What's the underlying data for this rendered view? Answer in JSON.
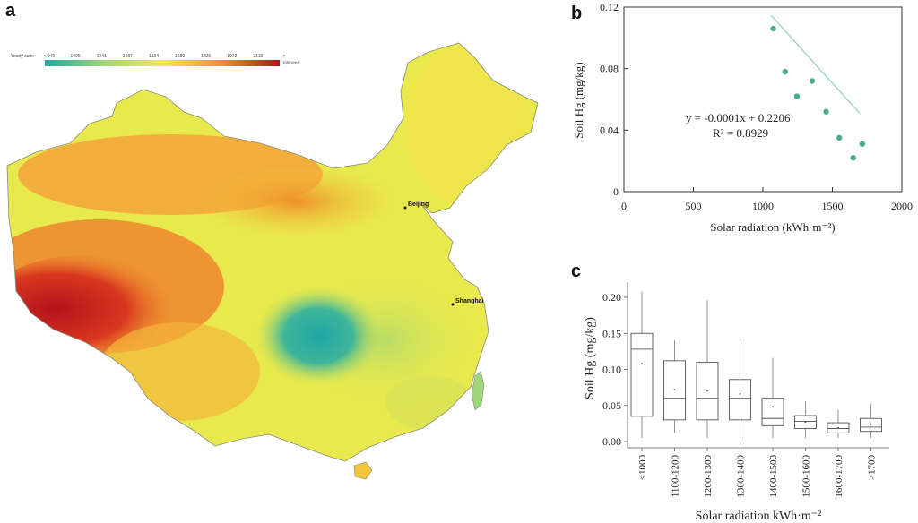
{
  "panels": {
    "a": "a",
    "b": "b",
    "c": "c"
  },
  "map": {
    "legend_title": "Yearly sum:",
    "legend_ticks": [
      "< 949",
      "1095",
      "1241",
      "1387",
      "1534",
      "1680",
      "1826",
      "1972",
      "2118",
      ">"
    ],
    "legend_unit": "kWh/m²",
    "cities": [
      "Beijing",
      "Shanghai"
    ],
    "colors": {
      "low": "#22a7a0",
      "mid": "#f2ec45",
      "high": "#b3131c"
    }
  },
  "chart_data": [
    {
      "type": "scatter",
      "xlabel": "Solar radiation (kWh·m⁻²)",
      "ylabel": "Soil Hg (mg/kg)",
      "xlim": [
        0,
        2000
      ],
      "ylim": [
        0,
        0.12
      ],
      "x_ticks": [
        "0",
        "500",
        "1000",
        "1500",
        "2000"
      ],
      "y_ticks": [
        "0",
        "0.04",
        "0.08",
        "0.12"
      ],
      "points": [
        {
          "x": 1075,
          "y": 0.106
        },
        {
          "x": 1160,
          "y": 0.078
        },
        {
          "x": 1245,
          "y": 0.062
        },
        {
          "x": 1355,
          "y": 0.072
        },
        {
          "x": 1455,
          "y": 0.052
        },
        {
          "x": 1550,
          "y": 0.035
        },
        {
          "x": 1650,
          "y": 0.022
        },
        {
          "x": 1715,
          "y": 0.031
        }
      ],
      "trendline": {
        "x_start": 1060,
        "x_end": 1700,
        "equation": "y = -0.0001x + 0.2206",
        "r2": "R² = 0.8929"
      },
      "point_color": "#4daa8e",
      "line_color": "#8fd0b8"
    },
    {
      "type": "box",
      "xlabel": "Solar radiation kWh·m⁻²",
      "ylabel": "Soil Hg (mg/kg)",
      "ylim": [
        0,
        0.22
      ],
      "y_ticks": [
        "0.00",
        "0.05",
        "0.10",
        "0.15",
        "0.20"
      ],
      "categories": [
        "<1000",
        "1100-1200",
        "1200-1300",
        "1300-1400",
        "1400-1500",
        "1500-1600",
        "1600-1700",
        ">1700"
      ],
      "boxes": [
        {
          "min": 0.005,
          "q1": 0.035,
          "median": 0.128,
          "q3": 0.15,
          "max": 0.208,
          "mean": 0.108
        },
        {
          "min": 0.012,
          "q1": 0.03,
          "median": 0.06,
          "q3": 0.112,
          "max": 0.14,
          "mean": 0.072
        },
        {
          "min": 0.005,
          "q1": 0.03,
          "median": 0.06,
          "q3": 0.11,
          "max": 0.196,
          "mean": 0.07
        },
        {
          "min": 0.005,
          "q1": 0.03,
          "median": 0.06,
          "q3": 0.086,
          "max": 0.142,
          "mean": 0.066
        },
        {
          "min": 0.005,
          "q1": 0.022,
          "median": 0.032,
          "q3": 0.06,
          "max": 0.116,
          "mean": 0.048
        },
        {
          "min": 0.005,
          "q1": 0.018,
          "median": 0.028,
          "q3": 0.036,
          "max": 0.056,
          "mean": 0.027
        },
        {
          "min": 0.005,
          "q1": 0.012,
          "median": 0.018,
          "q3": 0.026,
          "max": 0.044,
          "mean": 0.019
        },
        {
          "min": 0.005,
          "q1": 0.014,
          "median": 0.02,
          "q3": 0.032,
          "max": 0.052,
          "mean": 0.024
        }
      ]
    }
  ]
}
